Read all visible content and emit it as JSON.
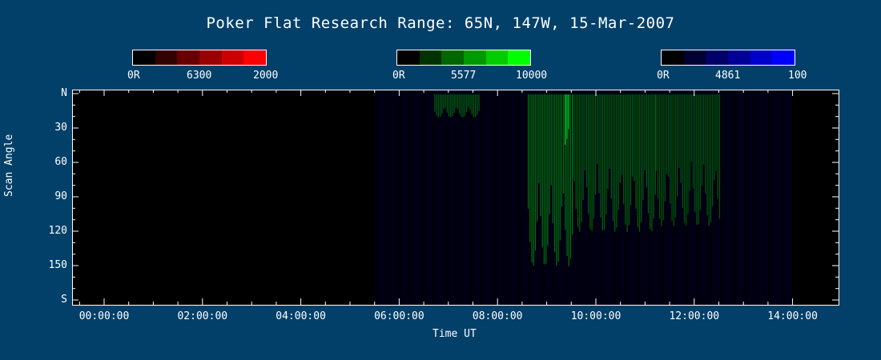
{
  "chart_data": {
    "type": "heatmap",
    "title": "Poker Flat Research Range: 65N, 147W, 15-Mar-2007",
    "xlabel": "Time UT",
    "ylabel": "Scan Angle",
    "x_ticks": [
      "00:00:00",
      "02:00:00",
      "04:00:00",
      "06:00:00",
      "08:00:00",
      "10:00:00",
      "12:00:00",
      "14:00:00"
    ],
    "y_ticks": [
      "N",
      "30",
      "60",
      "90",
      "120",
      "150",
      "S"
    ],
    "colorbars": [
      {
        "channel": "6300",
        "min_label": "0R",
        "max_label": "2000",
        "color": "#ff0000",
        "shades": [
          "#000000",
          "#330000",
          "#660000",
          "#990000",
          "#cc0000",
          "#ff0000"
        ]
      },
      {
        "channel": "5577",
        "min_label": "0R",
        "max_label": "10000",
        "color": "#00ff00",
        "shades": [
          "#000000",
          "#003300",
          "#006600",
          "#009900",
          "#00cc00",
          "#00ff00"
        ]
      },
      {
        "channel": "4861",
        "min_label": "0R",
        "max_label": "100",
        "color": "#0000ff",
        "shades": [
          "#000000",
          "#000033",
          "#000066",
          "#000099",
          "#0000cc",
          "#0000ff"
        ]
      }
    ],
    "data_start_hour": 5.5,
    "data_end_hour": 14.0,
    "emission_regions": [
      {
        "channel": "5577",
        "start_hour": 6.7,
        "end_hour": 7.6,
        "scan_min": 0,
        "scan_max": 20,
        "intensity": 0.35
      },
      {
        "channel": "5577",
        "start_hour": 8.6,
        "end_hour": 9.5,
        "scan_min": 0,
        "scan_max": 150,
        "intensity": 0.45
      },
      {
        "channel": "5577",
        "start_hour": 9.5,
        "end_hour": 11.2,
        "scan_min": 0,
        "scan_max": 120,
        "intensity": 0.35
      },
      {
        "channel": "5577",
        "start_hour": 11.2,
        "end_hour": 12.5,
        "scan_min": 0,
        "scan_max": 115,
        "intensity": 0.3
      },
      {
        "channel": "5577",
        "start_hour": 9.35,
        "end_hour": 9.45,
        "scan_min": 0,
        "scan_max": 45,
        "intensity": 0.9
      }
    ]
  }
}
